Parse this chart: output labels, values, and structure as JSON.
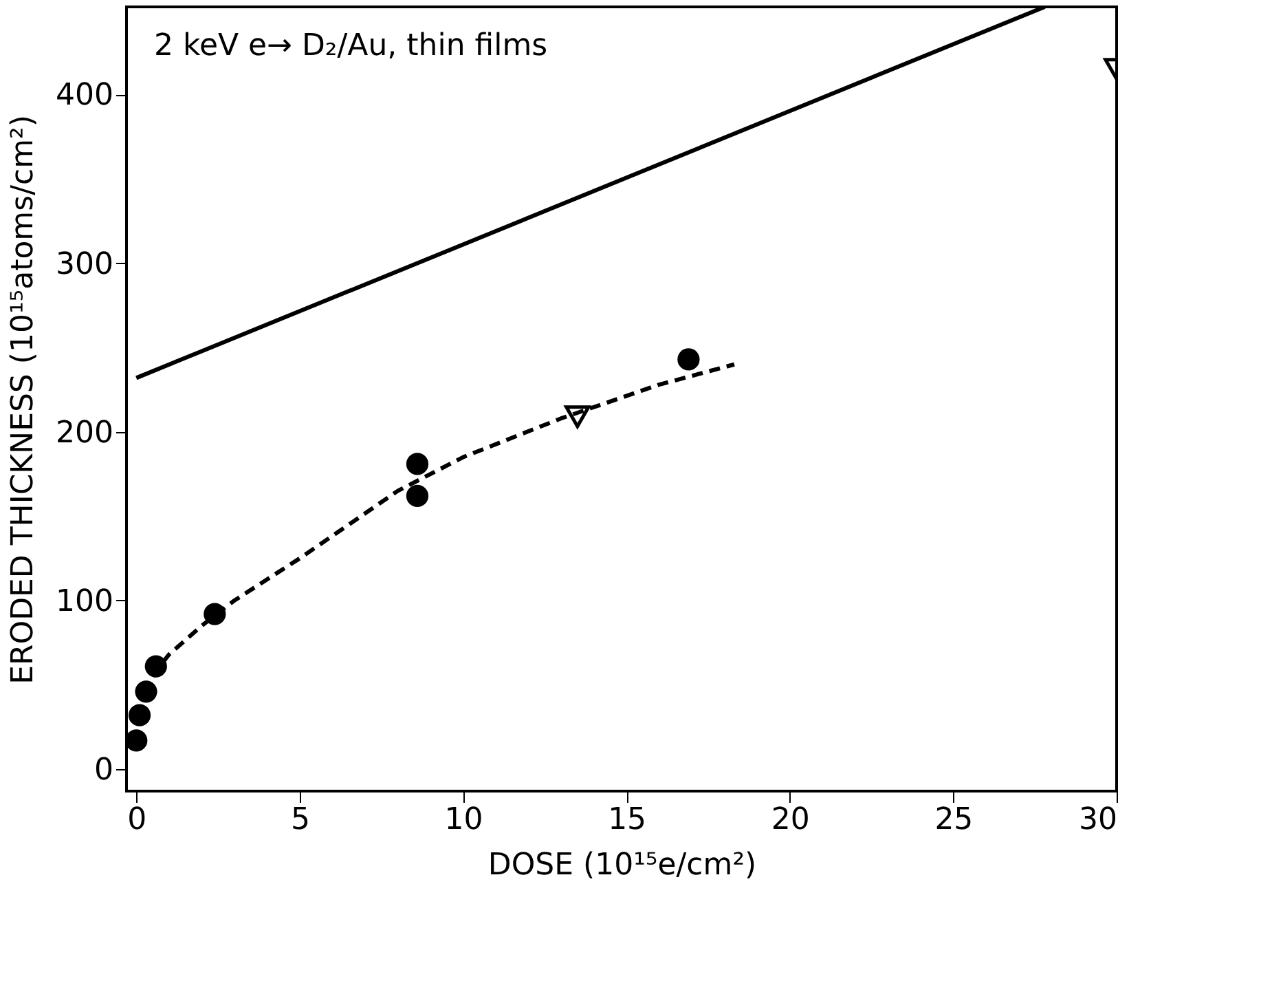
{
  "chart_data": {
    "type": "scatter",
    "xlabel": "DOSE (10¹⁵e/cm²)",
    "ylabel": "ERODED THICKNESS (10¹⁵atoms/cm²)",
    "annotations": [
      "2 keV e→ D₂/Au, thin films"
    ],
    "xlim": [
      -0.3,
      30
    ],
    "ylim": [
      -13,
      452
    ],
    "xticks": [
      0,
      5,
      10,
      15,
      20,
      25,
      30
    ],
    "yticks": [
      0,
      100,
      200,
      300,
      400
    ],
    "grid": false,
    "series": [
      {
        "marker": "circle",
        "color": "#000000",
        "x": [
          0,
          0.1,
          0.3,
          0.6,
          2.4,
          8.6,
          8.6,
          16.9
        ],
        "values": [
          17,
          32,
          46,
          61,
          92,
          181,
          162,
          243
        ]
      },
      {
        "marker": "triangle",
        "color": "#000000",
        "x": [
          13.5,
          30
        ],
        "values": [
          209,
          415
        ]
      },
      {
        "type": "line",
        "line_style": "solid",
        "color": "#000000",
        "x": [
          0,
          27.8
        ],
        "values": [
          232,
          452
        ]
      },
      {
        "type": "line",
        "line_style": "dashed",
        "color": "#000000",
        "x": [
          0.3,
          0.6,
          1,
          2,
          3,
          5,
          8,
          10,
          13,
          16,
          18.3
        ],
        "values": [
          45,
          58,
          68,
          85,
          100,
          125,
          165,
          185,
          208,
          228,
          240
        ]
      }
    ]
  }
}
